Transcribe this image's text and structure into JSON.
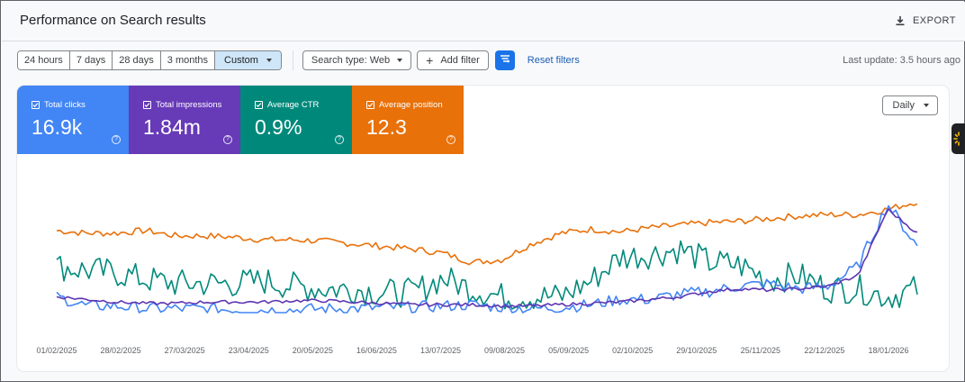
{
  "header": {
    "title": "Performance on Search results",
    "export_label": "EXPORT"
  },
  "date_range": {
    "options": [
      "24 hours",
      "7 days",
      "28 days",
      "3 months"
    ],
    "selected": "Custom"
  },
  "filters": {
    "search_type_label": "Search type: Web",
    "add_filter_label": "Add filter",
    "reset_label": "Reset filters"
  },
  "last_update": "Last update: 3.5 hours ago",
  "metrics": [
    {
      "label": "Total clicks",
      "value": "16.9k",
      "color": "#4285f4"
    },
    {
      "label": "Total impressions",
      "value": "1.84m",
      "color": "#673ab7"
    },
    {
      "label": "Average CTR",
      "value": "0.9%",
      "color": "#00897b"
    },
    {
      "label": "Average position",
      "value": "12.3",
      "color": "#e8710a"
    }
  ],
  "granularity": "Daily",
  "chart_data": {
    "type": "line",
    "x_tick_labels": [
      "01/02/2025",
      "28/02/2025",
      "27/03/2025",
      "23/04/2025",
      "20/05/2025",
      "16/06/2025",
      "13/07/2025",
      "09/08/2025",
      "05/09/2025",
      "02/10/2025",
      "29/10/2025",
      "25/11/2025",
      "22/12/2025",
      "18/01/2026"
    ],
    "axes_shown": false,
    "note_scale": "relative (no y axis shown); values are normalized 0-100 relative height",
    "series": [
      {
        "name": "Average position",
        "color": "#e8710a",
        "values": [
          62,
          60,
          60,
          62,
          58,
          58,
          57,
          55,
          55,
          54,
          52,
          50,
          48,
          45,
          38,
          40,
          52,
          60,
          63,
          61,
          64,
          66,
          68,
          69,
          71,
          73,
          74,
          74,
          78,
          84
        ]
      },
      {
        "name": "Average CTR",
        "color": "#00897b",
        "values": [
          35,
          32,
          30,
          25,
          22,
          22,
          22,
          24,
          20,
          18,
          18,
          15,
          15,
          26,
          18,
          12,
          12,
          12,
          24,
          42,
          44,
          48,
          38,
          36,
          25,
          28,
          18,
          18,
          12,
          18
        ]
      },
      {
        "name": "Total clicks",
        "color": "#4285f4",
        "values": [
          12,
          5,
          5,
          3,
          3,
          3,
          2,
          2,
          2,
          3,
          3,
          4,
          4,
          5,
          6,
          4,
          3,
          4,
          6,
          10,
          10,
          14,
          16,
          20,
          22,
          18,
          20,
          35,
          82,
          50
        ]
      },
      {
        "name": "Total impressions",
        "color": "#5e35b1",
        "values": [
          12,
          10,
          8,
          7,
          7,
          8,
          8,
          8,
          9,
          9,
          8,
          7,
          6,
          6,
          6,
          5,
          5,
          6,
          7,
          8,
          10,
          12,
          16,
          18,
          17,
          18,
          20,
          28,
          78,
          60
        ]
      }
    ]
  }
}
